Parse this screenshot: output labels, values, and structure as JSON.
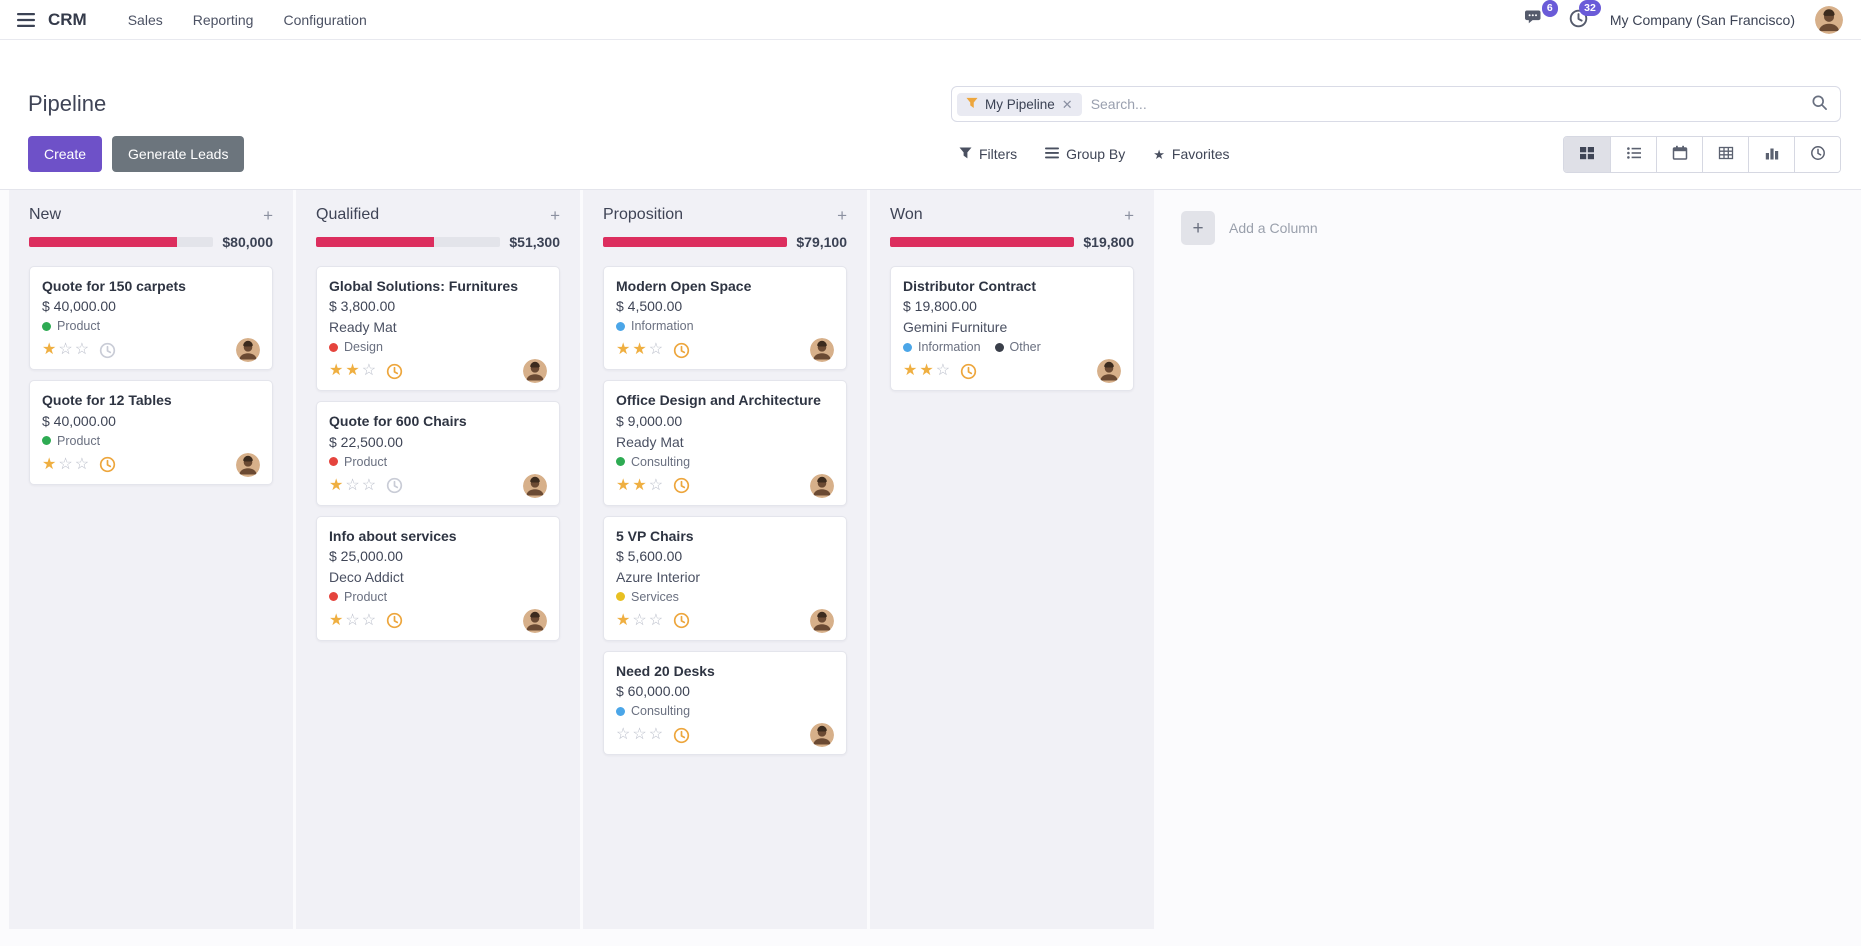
{
  "colors": {
    "accent": "#6e51c8",
    "badge": "#6a5bd8",
    "danger_progress": "#dc2e5e",
    "star_on": "#efaf41",
    "star_off": "#b9bdc9",
    "clock": {
      "gray": "#c9ccd6",
      "orange": "#eda63d"
    },
    "tags": {
      "green": "#2eab53",
      "red": "#e5443d",
      "blue": "#4ba6e8",
      "yellow": "#e8c022",
      "dark": "#3a3f4a"
    }
  },
  "navbar": {
    "app_name": "CRM",
    "menu_items": [
      "Sales",
      "Reporting",
      "Configuration"
    ],
    "messages_badge": "6",
    "activities_badge": "32",
    "company": "My Company (San Francisco)"
  },
  "control_panel": {
    "title": "Pipeline",
    "buttons": {
      "create": "Create",
      "generate_leads": "Generate Leads"
    },
    "toolbar": {
      "filters": "Filters",
      "group_by": "Group By",
      "favorites": "Favorites"
    },
    "search": {
      "facet": "My Pipeline",
      "placeholder": "Search..."
    }
  },
  "board": {
    "add_column_label": "Add a Column",
    "stars_max": 3,
    "columns": [
      {
        "name": "New",
        "amount": "$80,000",
        "progress_red_pct": 80,
        "cards": [
          {
            "title": "Quote for 150 carpets",
            "amount": "$ 40,000.00",
            "tags": [
              {
                "label": "Product",
                "color": "green"
              }
            ],
            "stars": 1,
            "clock": "gray"
          },
          {
            "title": "Quote for 12 Tables",
            "amount": "$ 40,000.00",
            "tags": [
              {
                "label": "Product",
                "color": "green"
              }
            ],
            "stars": 1,
            "clock": "orange"
          }
        ]
      },
      {
        "name": "Qualified",
        "amount": "$51,300",
        "progress_red_pct": 64,
        "cards": [
          {
            "title": "Global Solutions: Furnitures",
            "amount": "$ 3,800.00",
            "partner": "Ready Mat",
            "tags": [
              {
                "label": "Design",
                "color": "red"
              }
            ],
            "stars": 2,
            "clock": "orange"
          },
          {
            "title": "Quote for 600 Chairs",
            "amount": "$ 22,500.00",
            "tags": [
              {
                "label": "Product",
                "color": "red"
              }
            ],
            "stars": 1,
            "clock": "gray"
          },
          {
            "title": "Info about services",
            "amount": "$ 25,000.00",
            "partner": "Deco Addict",
            "tags": [
              {
                "label": "Product",
                "color": "red"
              }
            ],
            "stars": 1,
            "clock": "orange"
          }
        ]
      },
      {
        "name": "Proposition",
        "amount": "$79,100",
        "progress_red_pct": 100,
        "cards": [
          {
            "title": "Modern Open Space",
            "amount": "$ 4,500.00",
            "tags": [
              {
                "label": "Information",
                "color": "blue"
              }
            ],
            "stars": 2,
            "clock": "orange"
          },
          {
            "title": "Office Design and Architecture",
            "amount": "$ 9,000.00",
            "partner": "Ready Mat",
            "tags": [
              {
                "label": "Consulting",
                "color": "green"
              }
            ],
            "stars": 2,
            "clock": "orange"
          },
          {
            "title": "5 VP Chairs",
            "amount": "$ 5,600.00",
            "partner": "Azure Interior",
            "tags": [
              {
                "label": "Services",
                "color": "yellow"
              }
            ],
            "stars": 1,
            "clock": "orange"
          },
          {
            "title": "Need 20 Desks",
            "amount": "$ 60,000.00",
            "tags": [
              {
                "label": "Consulting",
                "color": "blue"
              }
            ],
            "stars": 0,
            "clock": "orange"
          }
        ]
      },
      {
        "name": "Won",
        "amount": "$19,800",
        "progress_red_pct": 100,
        "cards": [
          {
            "title": "Distributor Contract",
            "amount": "$ 19,800.00",
            "partner": "Gemini Furniture",
            "tags": [
              {
                "label": "Information",
                "color": "blue"
              },
              {
                "label": "Other",
                "color": "dark"
              }
            ],
            "stars": 2,
            "clock": "orange"
          }
        ]
      }
    ]
  }
}
